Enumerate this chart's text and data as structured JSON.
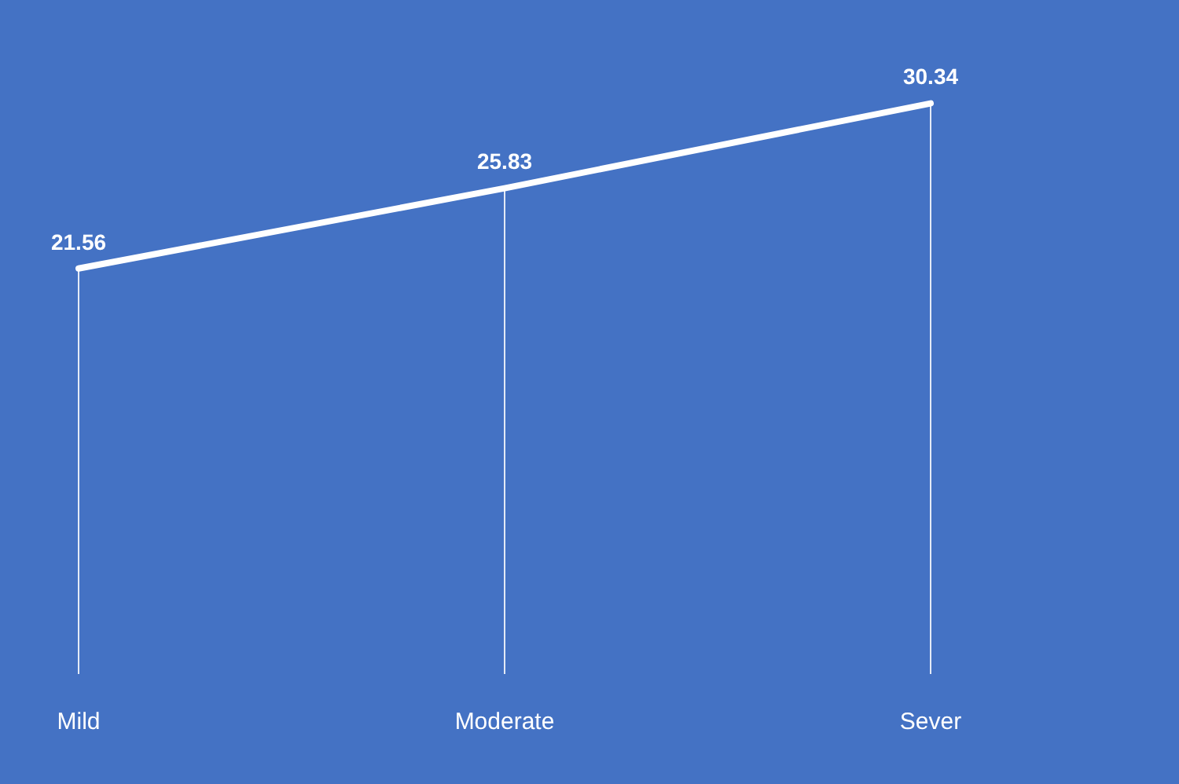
{
  "chart_data": {
    "type": "line",
    "categories": [
      "Mild",
      "Moderate",
      "Sever"
    ],
    "series": [
      {
        "color": "#ffffff",
        "values": [
          21.56,
          25.83,
          30.34
        ]
      }
    ],
    "tick_labels": "x",
    "data_labels": true,
    "grid": "x",
    "legend": false,
    "line_style": "solid"
  }
}
